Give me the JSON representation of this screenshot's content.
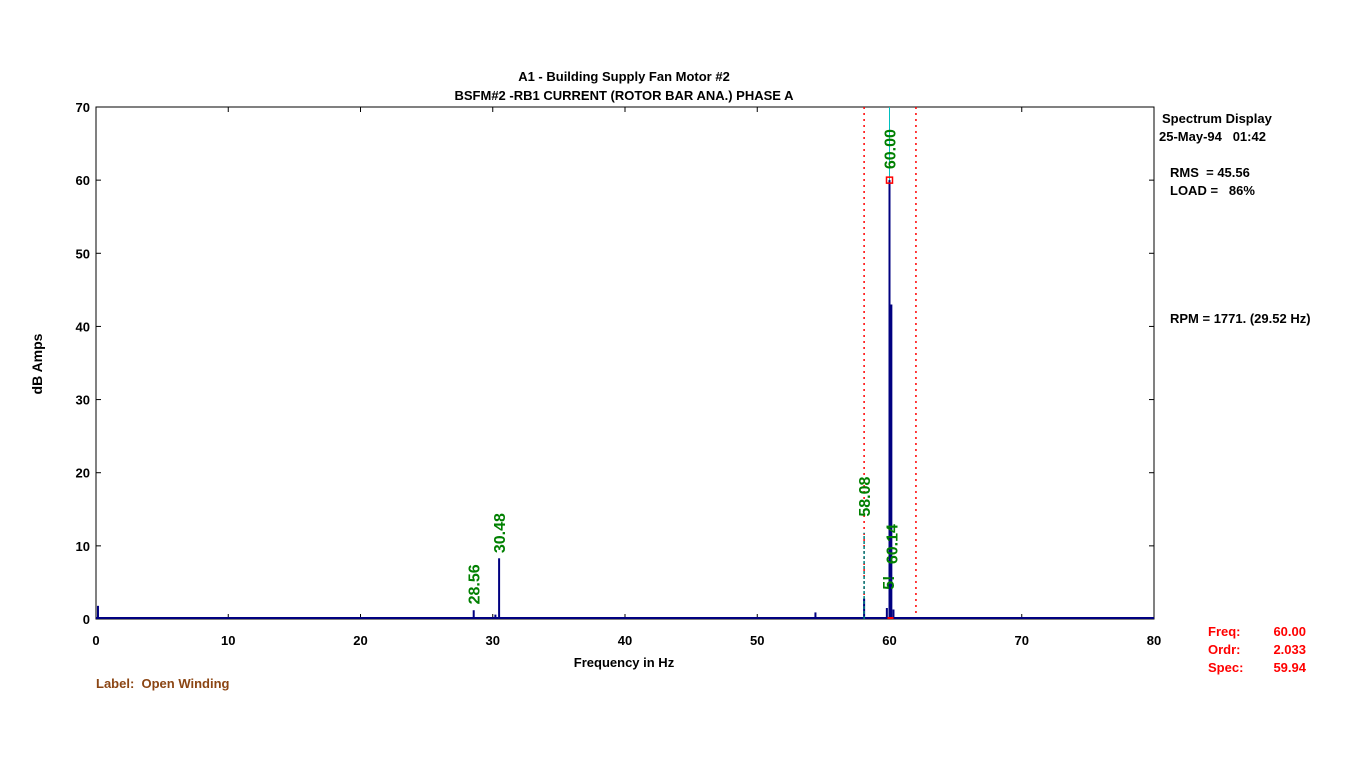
{
  "chart_data": {
    "type": "line",
    "title": "A1   - Building Supply Fan Motor #2",
    "subtitle": "BSFM#2    -RB1   CURRENT (ROTOR BAR ANA.) PHASE A",
    "xlabel": "Frequency in Hz",
    "ylabel": "dB Amps",
    "xlim": [
      0,
      80
    ],
    "ylim": [
      0,
      70
    ],
    "x_ticks": [
      "0",
      "10",
      "20",
      "30",
      "40",
      "50",
      "60",
      "70",
      "80"
    ],
    "y_ticks": [
      "0",
      "10",
      "20",
      "30",
      "40",
      "50",
      "60",
      "70"
    ],
    "grid": false,
    "series": [
      {
        "color": "#000080",
        "peaks": [
          {
            "x": 0.15,
            "y": 1.8
          },
          {
            "x": 28.56,
            "y": 1.2
          },
          {
            "x": 30.2,
            "y": 0.6
          },
          {
            "x": 30.48,
            "y": 8.3
          },
          {
            "x": 54.4,
            "y": 0.9
          },
          {
            "x": 58.08,
            "y": 2.8
          },
          {
            "x": 59.8,
            "y": 1.5
          },
          {
            "x": 60.0,
            "y": 60.0
          },
          {
            "x": 60.14,
            "y": 43.0
          },
          {
            "x": 60.3,
            "y": 1.3
          }
        ]
      }
    ],
    "peak_labels": [
      {
        "text": "28.56",
        "x": 28.56,
        "y": 2.0
      },
      {
        "text": "30.48",
        "x": 30.48,
        "y": 9.0
      },
      {
        "text": "58.08",
        "x": 58.08,
        "y": 14.0
      },
      {
        "text": "5!",
        "x": 59.9,
        "y": 4.0
      },
      {
        "text": "60.14",
        "x": 60.14,
        "y": 7.5
      },
      {
        "text": "60.00",
        "x": 60.0,
        "y": 61.5
      }
    ],
    "dashed_markers": [
      {
        "x": 58.08,
        "y": 11.8,
        "color": "#008080"
      }
    ],
    "cursor": {
      "x": 60.0,
      "y": 60.0,
      "color": "#ff0000"
    },
    "sideband_lines": [
      58.08,
      62.0
    ],
    "cursor_line_color": "#00c0c0"
  },
  "info": {
    "display": "Spectrum Display",
    "datetime": "25-May-94   01:42",
    "rms": "RMS  = 45.56",
    "load": "LOAD =   86%",
    "rpm": "RPM = 1771. (29.52 Hz)"
  },
  "cursor_readout": {
    "freq_label": "Freq:",
    "freq_value": "60.00",
    "ordr_label": "Ordr:",
    "ordr_value": "2.033",
    "spec_label": "Spec:",
    "spec_value": "59.94"
  },
  "footer": {
    "label": "Label:  Open Winding"
  }
}
